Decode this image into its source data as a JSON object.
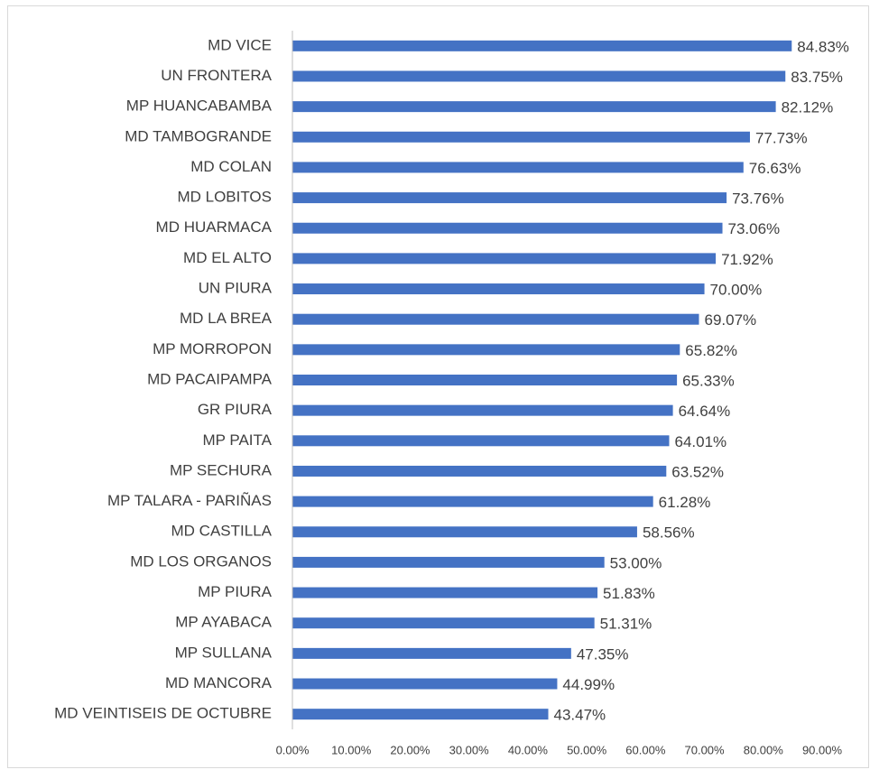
{
  "chart_data": {
    "type": "bar",
    "orientation": "horizontal",
    "categories": [
      "MD VICE",
      "UN FRONTERA",
      "MP HUANCABAMBA",
      "MD TAMBOGRANDE",
      "MD COLAN",
      "MD LOBITOS",
      "MD HUARMACA",
      "MD EL ALTO",
      "UN PIURA",
      "MD LA BREA",
      "MP MORROPON",
      "MD PACAIPAMPA",
      "GR PIURA",
      "MP PAITA",
      "MP SECHURA",
      "MP TALARA - PARIÑAS",
      "MD CASTILLA",
      "MD LOS ORGANOS",
      "MP PIURA",
      "MP AYABACA",
      "MP SULLANA",
      "MD MANCORA",
      "MD VEINTISEIS DE OCTUBRE"
    ],
    "values": [
      84.83,
      83.75,
      82.12,
      77.73,
      76.63,
      73.76,
      73.06,
      71.92,
      70.0,
      69.07,
      65.82,
      65.33,
      64.64,
      64.01,
      63.52,
      61.28,
      58.56,
      53.0,
      51.83,
      51.31,
      47.35,
      44.99,
      43.47
    ],
    "value_labels": [
      "84.83%",
      "83.75%",
      "82.12%",
      "77.73%",
      "76.63%",
      "73.76%",
      "73.06%",
      "71.92%",
      "70.00%",
      "69.07%",
      "65.82%",
      "65.33%",
      "64.64%",
      "64.01%",
      "63.52%",
      "61.28%",
      "58.56%",
      "53.00%",
      "51.83%",
      "51.31%",
      "47.35%",
      "44.99%",
      "43.47%"
    ],
    "color": "#4472c4",
    "xlim": [
      0,
      90
    ],
    "xticks": [
      {
        "value": 0,
        "label": "0.00%"
      },
      {
        "value": 10,
        "label": "10.00%"
      },
      {
        "value": 20,
        "label": "20.00%"
      },
      {
        "value": 30,
        "label": "30.00%"
      },
      {
        "value": 40,
        "label": "40.00%"
      },
      {
        "value": 50,
        "label": "50.00%"
      },
      {
        "value": 60,
        "label": "60.00%"
      },
      {
        "value": 70,
        "label": "70.00%"
      },
      {
        "value": 80,
        "label": "80.00%"
      },
      {
        "value": 90,
        "label": "90.00%"
      }
    ],
    "grid": false
  }
}
